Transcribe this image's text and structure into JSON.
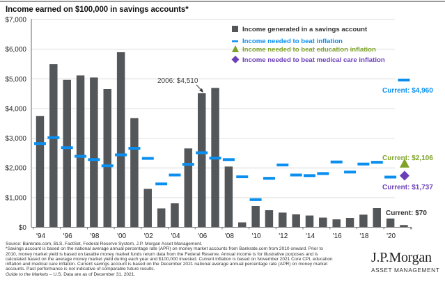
{
  "chart_data": {
    "type": "bar",
    "title": "Income earned on $100,000 in savings accounts*",
    "xlabel": "",
    "ylabel": "",
    "ylim": [
      0,
      7000
    ],
    "yticks": [
      0,
      1000,
      2000,
      3000,
      4000,
      5000,
      6000,
      7000
    ],
    "ytick_labels": [
      "$0",
      "$1,000",
      "$2,000",
      "$3,000",
      "$4,000",
      "$5,000",
      "$6,000",
      "$7,000"
    ],
    "grid": true,
    "categories": [
      "1994",
      "1995",
      "1996",
      "1997",
      "1998",
      "1999",
      "2000",
      "2001",
      "2002",
      "2003",
      "2004",
      "2005",
      "2006",
      "2007",
      "2008",
      "2009",
      "2010",
      "2011",
      "2012",
      "2013",
      "2014",
      "2015",
      "2016",
      "2017",
      "2018",
      "2019",
      "2020",
      "2021"
    ],
    "xtick_labels": [
      "'94",
      "'96",
      "'98",
      "'00",
      "'02",
      "'04",
      "'06",
      "'08",
      "'10",
      "'12",
      "'14",
      "'16",
      "'18",
      "'20"
    ],
    "series": [
      {
        "name": "Income generated in a savings  account",
        "kind": "bar",
        "color": "#54575a",
        "values": [
          3740,
          5490,
          4960,
          5110,
          5040,
          4650,
          5890,
          3670,
          1290,
          630,
          800,
          2650,
          4510,
          4690,
          2040,
          160,
          710,
          570,
          490,
          430,
          390,
          320,
          260,
          310,
          420,
          640,
          290,
          70
        ]
      },
      {
        "name": "Income needed to beat inflation",
        "kind": "dash",
        "color": "#0a8ff0",
        "values": [
          2820,
          3020,
          2680,
          2390,
          2280,
          2070,
          2440,
          2660,
          2320,
          1460,
          1760,
          2120,
          2510,
          2330,
          2280,
          1700,
          930,
          1650,
          2100,
          1760,
          1740,
          1810,
          2200,
          1860,
          2130,
          2190,
          1690,
          4960
        ]
      },
      {
        "name": "Income needed to beat education inflation",
        "kind": "triangle",
        "color": "#7da227",
        "values": {
          "2021": 2106
        }
      },
      {
        "name": "Income needed to beat medical care inflation",
        "kind": "diamond",
        "color": "#6b3fb8",
        "values": {
          "2021": 1737
        }
      }
    ],
    "legend_position": "top-right",
    "annotations": [
      {
        "text": "2006: $4,510",
        "color": "#444444",
        "target": "2006"
      },
      {
        "text": "Current: $4,960",
        "color": "#0a8ff0",
        "target": "2021-inflation"
      },
      {
        "text": "Current: $2,106",
        "color": "#7da227",
        "target": "2021-education"
      },
      {
        "text": "Current: $1,737",
        "color": "#6b3fb8",
        "target": "2021-medical"
      },
      {
        "text": "Current: $70",
        "color": "#333333",
        "target": "2021-savings"
      }
    ]
  },
  "footnotes": {
    "source": "Source: Bankrate.com, BLS, FactSet, Federal Reserve System, J.P. Morgan Asset Management.",
    "note1": "*Savings account is based on the national average annual percentage rate (APR) on money market accounts from Bankrate.com from 2010 onward. Prior to 2010, money market yield is based on taxable money market funds return data from the Federal Reserve. Annual income is for illustrative purposes and is calculated based on the average money market yield during each year and $100,000 invested. Current inflation is based on November 2021 Core CPI, education inflation and medical care inflation. Current savings account is based on the December 2021 national average annual percentage rate (APR) on money market accounts. Past performance is not indicative of comparable future results.",
    "guide": "Guide to the Markets",
    "guide_suffix": " – U.S. Data are as of December 31, 2021."
  },
  "logo": {
    "main": "J.P.Morgan",
    "sub": "ASSET MANAGEMENT"
  }
}
